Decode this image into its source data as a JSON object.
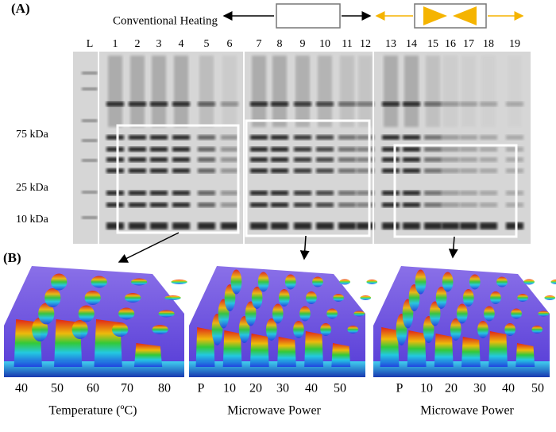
{
  "panel_a": {
    "label": "(A)",
    "heating_label": "Conventional Heating",
    "lanes": [
      "L",
      "1",
      "2",
      "3",
      "4",
      "5",
      "6",
      "7",
      "8",
      "9",
      "10",
      "11",
      "12",
      "13",
      "14",
      "15",
      "16",
      "17",
      "18",
      "19"
    ],
    "markers": [
      "75 kDa",
      "25 kDa",
      "10 kDa"
    ]
  },
  "panel_b": {
    "label": "(B)",
    "plots": [
      {
        "ticks": [
          "40",
          "50",
          "60",
          "70",
          "80"
        ],
        "axis_label": "Temperature (ºC)"
      },
      {
        "ticks": [
          "P",
          "10",
          "20",
          "30",
          "40",
          "50"
        ],
        "axis_label": "Microwave Power"
      },
      {
        "ticks": [
          "P",
          "10",
          "20",
          "30",
          "40",
          "50"
        ],
        "axis_label": "Microwave Power"
      }
    ]
  }
}
